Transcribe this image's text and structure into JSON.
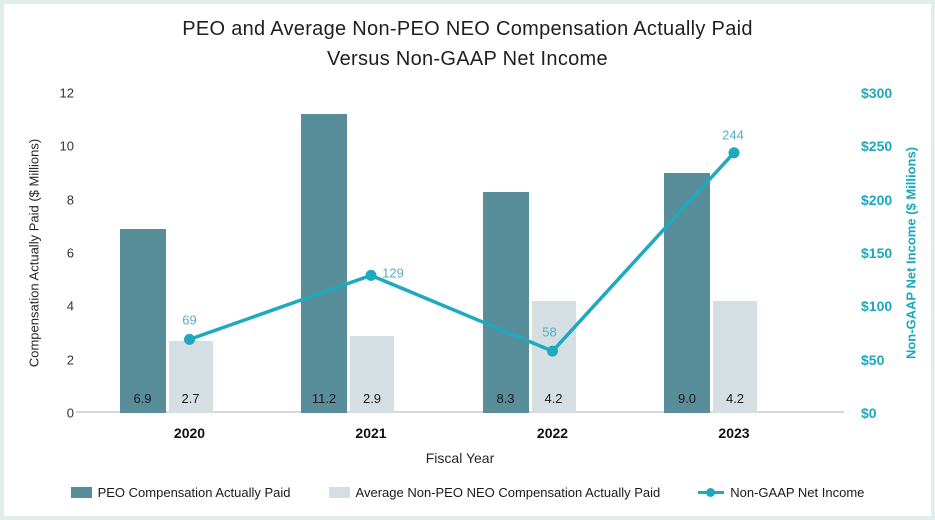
{
  "title": {
    "line1": "PEO and Average Non-PEO NEO Compensation Actually Paid",
    "line2": "Versus Non-GAAP Net Income"
  },
  "chart_data": {
    "type": "combo-bar-line",
    "categories": [
      "2020",
      "2021",
      "2022",
      "2023"
    ],
    "series": [
      {
        "name": "PEO Compensation Actually Paid",
        "type": "bar",
        "axis": "left",
        "color": "#578E99",
        "values": [
          6.9,
          11.2,
          8.3,
          9.0
        ],
        "value_labels": [
          "6.9",
          "11.2",
          "8.3",
          "9.0"
        ],
        "label_color": "#1a1a1a"
      },
      {
        "name": "Average Non-PEO NEO Compensation Actually Paid",
        "type": "bar",
        "axis": "left",
        "color": "#D5DFE3",
        "values": [
          2.7,
          2.9,
          4.2,
          4.2
        ],
        "value_labels": [
          "2.7",
          "2.9",
          "4.2",
          "4.2"
        ],
        "label_color": "#1a1a1a"
      },
      {
        "name": "Non-GAAP Net Income",
        "type": "line",
        "axis": "right",
        "color": "#1FA9BF",
        "values": [
          69,
          129,
          58,
          244
        ],
        "value_labels": [
          "69",
          "129",
          "58",
          "244"
        ],
        "label_color": "#55AFC2",
        "point_label_offsets": [
          {
            "dx": 0,
            "dy": -19
          },
          {
            "dx": 22,
            "dy": -2
          },
          {
            "dx": -3,
            "dy": -19
          },
          {
            "dx": -1,
            "dy": -18
          }
        ]
      }
    ],
    "xlabel": "Fiscal Year",
    "left_axis": {
      "title": "Compensation Actually Paid ($ Millions)",
      "min": 0,
      "max": 12,
      "step": 2,
      "ticks": [
        "0",
        "2",
        "4",
        "6",
        "8",
        "10",
        "12"
      ],
      "color": "#333333"
    },
    "right_axis": {
      "title": "Non-GAAP Net Income ($ Millions)",
      "min": 0,
      "max": 300,
      "step": 50,
      "ticks": [
        "$0",
        "$50",
        "$100",
        "$150",
        "$200",
        "$250",
        "$300"
      ],
      "color": "#1BA7BD"
    },
    "grid": false,
    "legend_position": "bottom"
  }
}
